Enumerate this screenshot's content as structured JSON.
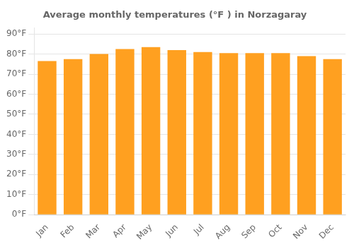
{
  "chart_data": {
    "type": "bar",
    "title": "Average monthly temperatures (°F ) in Norzagaray",
    "categories": [
      "Jan",
      "Feb",
      "Mar",
      "Apr",
      "May",
      "Jun",
      "Jul",
      "Aug",
      "Sep",
      "Oct",
      "Nov",
      "Dec"
    ],
    "values": [
      76.5,
      77.5,
      80.0,
      82.5,
      83.5,
      82.0,
      81.0,
      80.5,
      80.5,
      80.5,
      79.0,
      77.5
    ],
    "color": "#FFA020",
    "ylim": [
      0,
      93
    ],
    "yticks": [
      {
        "value": 0,
        "label": "0°F"
      },
      {
        "value": 10,
        "label": "10°F"
      },
      {
        "value": 20,
        "label": "20°F"
      },
      {
        "value": 30,
        "label": "30°F"
      },
      {
        "value": 40,
        "label": "40°F"
      },
      {
        "value": 50,
        "label": "50°F"
      },
      {
        "value": 60,
        "label": "60°F"
      },
      {
        "value": 70,
        "label": "70°F"
      },
      {
        "value": 80,
        "label": "80°F"
      },
      {
        "value": 90,
        "label": "90°F"
      }
    ],
    "grid": true
  }
}
